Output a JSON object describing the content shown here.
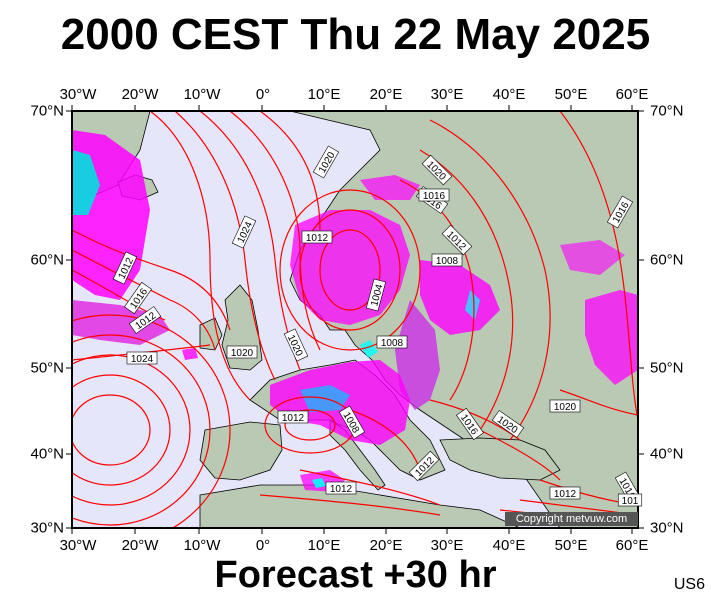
{
  "title": "2000 CEST Thu 22 May 2025",
  "footer": "Forecast +30 hr",
  "corner_code": "US6",
  "copyright": "Copyright metvuw.com",
  "lon_ticks": [
    "30°W",
    "20°W",
    "10°W",
    "0°",
    "10°E",
    "20°E",
    "30°E",
    "40°E",
    "50°E",
    "60°E"
  ],
  "lat_ticks": [
    "70°N",
    "60°N",
    "50°N",
    "40°N",
    "30°N"
  ],
  "isobar_labels": [
    "1020",
    "1020",
    "1016",
    "1012",
    "1024",
    "1012",
    "1008",
    "1004",
    "1012",
    "1016",
    "1012",
    "1016",
    "1020",
    "1024",
    "1016",
    "1020",
    "1008",
    "1012",
    "1008",
    "1016",
    "1020",
    "1020",
    "1012",
    "1012",
    "1012",
    "1016",
    "101"
  ],
  "colors": {
    "ocean": "#e6e6fa",
    "land": "#b9c9b3",
    "isobar": "#ff0000",
    "precip_heavy": "#ff00ff",
    "precip_light": "#c030e0",
    "precip_core": "#00ffff"
  }
}
